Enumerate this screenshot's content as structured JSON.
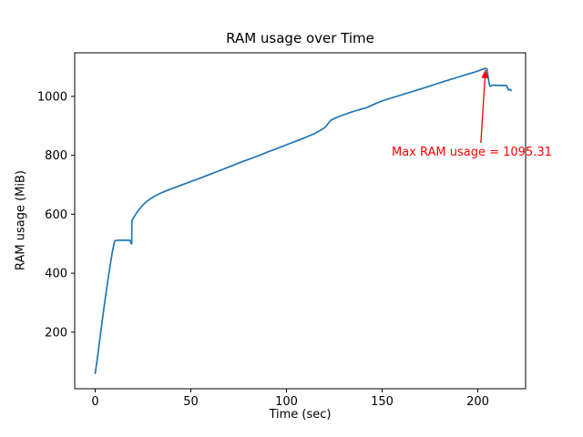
{
  "chart_data": {
    "type": "line",
    "title": "RAM usage over Time",
    "xlabel": "Time (sec)",
    "ylabel": "RAM usage (MiB)",
    "x_ticks": [
      0,
      50,
      100,
      150,
      200
    ],
    "y_ticks": [
      200,
      400,
      600,
      800,
      1000
    ],
    "xlim": [
      -10.7,
      225
    ],
    "ylim": [
      8,
      1148
    ],
    "grid": false,
    "legend": false,
    "background_color": "#ffffff",
    "spine_color": "#000000",
    "max_ram_usage": 1095.31,
    "series": [
      {
        "name": "RAM usage",
        "color": "#1f77b4",
        "points": [
          [
            0,
            60
          ],
          [
            1,
            105
          ],
          [
            2,
            155
          ],
          [
            3,
            205
          ],
          [
            4,
            255
          ],
          [
            5,
            302
          ],
          [
            6,
            348
          ],
          [
            7,
            392
          ],
          [
            8,
            434
          ],
          [
            9,
            474
          ],
          [
            10,
            505
          ],
          [
            10.6,
            511
          ],
          [
            12,
            512
          ],
          [
            14,
            512
          ],
          [
            16,
            512
          ],
          [
            18,
            512
          ],
          [
            18.5,
            508
          ],
          [
            18.8,
            500
          ],
          [
            19.1,
            500
          ],
          [
            19.2,
            578
          ],
          [
            20,
            588
          ],
          [
            21.5,
            603
          ],
          [
            23,
            617
          ],
          [
            25,
            632
          ],
          [
            27,
            644
          ],
          [
            29,
            653
          ],
          [
            31,
            661
          ],
          [
            33,
            668
          ],
          [
            35,
            674
          ],
          [
            40,
            687
          ],
          [
            45,
            699
          ],
          [
            50,
            711
          ],
          [
            55,
            723
          ],
          [
            60,
            736
          ],
          [
            65,
            748
          ],
          [
            70,
            761
          ],
          [
            75,
            774
          ],
          [
            80,
            786
          ],
          [
            85,
            798
          ],
          [
            90,
            811
          ],
          [
            95,
            823
          ],
          [
            100,
            836
          ],
          [
            105,
            848
          ],
          [
            110,
            861
          ],
          [
            115,
            875
          ],
          [
            118,
            886
          ],
          [
            120,
            894
          ],
          [
            121,
            901
          ],
          [
            122,
            910
          ],
          [
            123,
            918
          ],
          [
            124,
            922
          ],
          [
            126,
            928
          ],
          [
            130,
            938
          ],
          [
            134,
            947
          ],
          [
            138,
            955
          ],
          [
            142,
            962
          ],
          [
            146,
            974
          ],
          [
            150,
            985
          ],
          [
            155,
            995
          ],
          [
            160,
            1005
          ],
          [
            165,
            1015
          ],
          [
            170,
            1025
          ],
          [
            175,
            1035
          ],
          [
            180,
            1046
          ],
          [
            185,
            1056
          ],
          [
            190,
            1066
          ],
          [
            195,
            1076
          ],
          [
            198,
            1082
          ],
          [
            200,
            1086
          ],
          [
            202,
            1091
          ],
          [
            203,
            1093
          ],
          [
            204,
            1095.31
          ],
          [
            204.8,
            1093
          ],
          [
            205.4,
            1068
          ],
          [
            206,
            1042
          ],
          [
            206.5,
            1034
          ],
          [
            207.5,
            1038
          ],
          [
            209,
            1038
          ],
          [
            211,
            1037
          ],
          [
            213,
            1037
          ],
          [
            215,
            1037
          ],
          [
            215.6,
            1028
          ],
          [
            216,
            1022
          ],
          [
            216.8,
            1024
          ],
          [
            217.5,
            1020
          ]
        ]
      }
    ],
    "annotation": {
      "text": "Max RAM usage = 1095.31",
      "color": "#ff0000",
      "text_xy": [
        155,
        799
      ],
      "arrow_base_xy": [
        201.6,
        842
      ],
      "arrow_tip_xy": [
        204,
        1090
      ]
    }
  }
}
